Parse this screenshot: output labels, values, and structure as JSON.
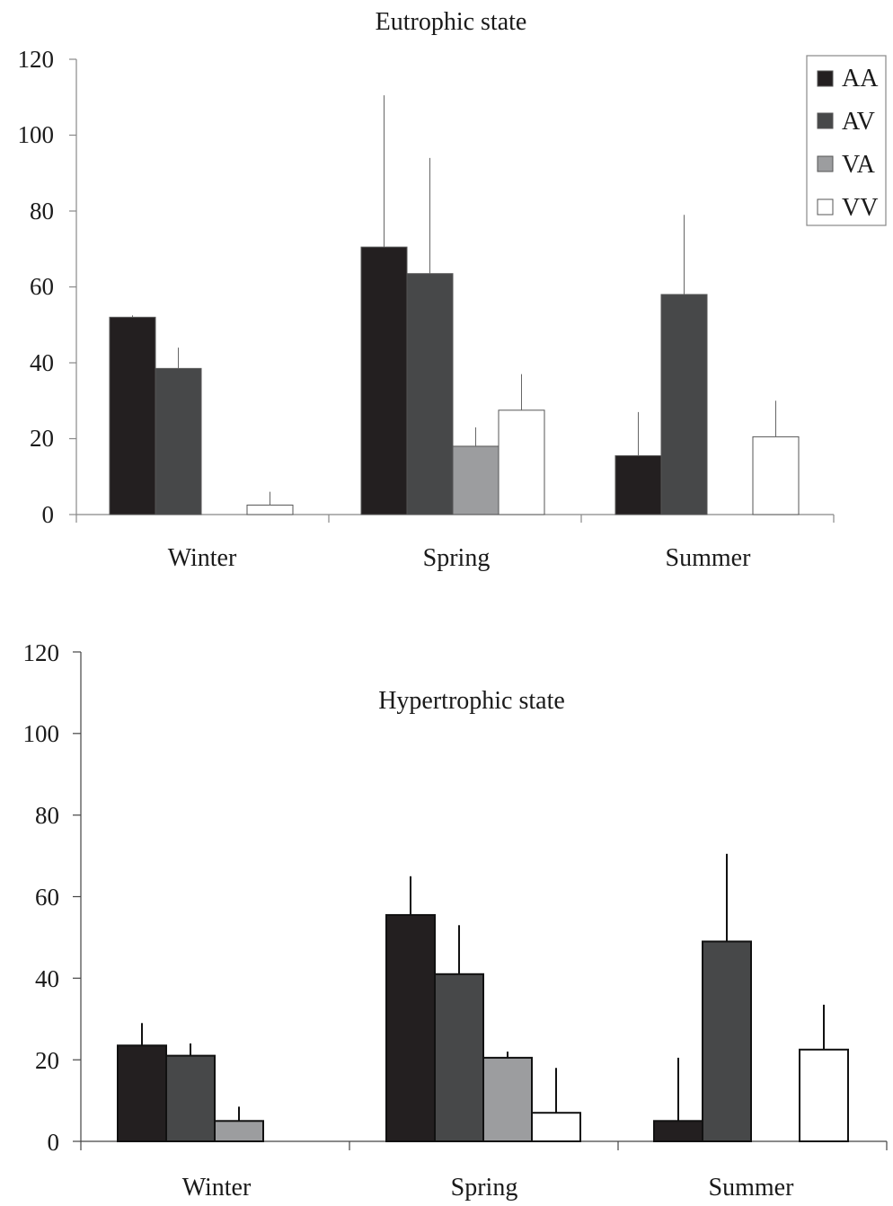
{
  "chart_data": [
    {
      "type": "bar",
      "title": "Eutrophic state",
      "xlabel": "",
      "ylabel": "",
      "categories": [
        "Winter",
        "Spring",
        "Summer"
      ],
      "ylim": [
        0,
        120
      ],
      "yticks": [
        "0",
        "20",
        "40",
        "60",
        "80",
        "100",
        "120"
      ],
      "legend_position": "top-right",
      "series": [
        {
          "name": "AA",
          "color": "#231f20",
          "values": [
            52,
            70.5,
            15.5
          ],
          "err": [
            0.5,
            40,
            11.5
          ]
        },
        {
          "name": "AV",
          "color": "#474849",
          "values": [
            38.5,
            63.5,
            58
          ],
          "err": [
            5.5,
            30.5,
            21
          ]
        },
        {
          "name": "VA",
          "color": "#9c9d9f",
          "values": [
            0,
            18,
            0
          ],
          "err": [
            0,
            5,
            0
          ]
        },
        {
          "name": "VV",
          "color": "#ffffff",
          "values": [
            2.5,
            27.5,
            20.5
          ],
          "err": [
            3.5,
            9.5,
            9.5
          ]
        }
      ]
    },
    {
      "type": "bar",
      "title": "Hypertrophic state",
      "xlabel": "",
      "ylabel": "",
      "categories": [
        "Winter",
        "Spring",
        "Summer"
      ],
      "ylim": [
        0,
        120
      ],
      "yticks": [
        "0",
        "20",
        "40",
        "60",
        "80",
        "100",
        "120"
      ],
      "legend_position": "none",
      "series": [
        {
          "name": "AA",
          "color": "#231f20",
          "values": [
            23.5,
            55.5,
            5
          ],
          "err": [
            5.5,
            9.5,
            15.5
          ]
        },
        {
          "name": "AV",
          "color": "#474849",
          "values": [
            21,
            41,
            49
          ],
          "err": [
            3,
            12,
            21.5
          ]
        },
        {
          "name": "VA",
          "color": "#9c9d9f",
          "values": [
            5,
            20.5,
            0
          ],
          "err": [
            3.5,
            1.5,
            0
          ]
        },
        {
          "name": "VV",
          "color": "#ffffff",
          "values": [
            0,
            7,
            22.5
          ],
          "err": [
            0,
            11,
            11
          ]
        }
      ]
    }
  ]
}
